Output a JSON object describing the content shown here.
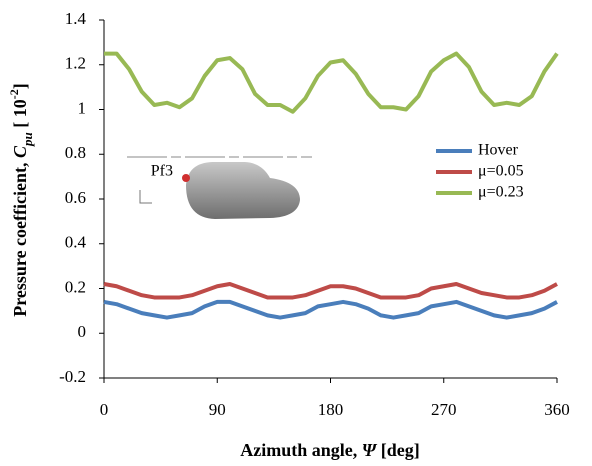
{
  "chart_data": {
    "type": "line",
    "xlabel": {
      "text": "Azimuth angle, ",
      "symbol": "Ψ",
      "unit": " [deg]"
    },
    "ylabel": {
      "text": "Pressure coefficient, ",
      "symbol": "C",
      "subscript": "pu",
      "unit": " [  10",
      "superscript": "-2",
      "close": "]"
    },
    "inset_label": "Pf3",
    "x": [
      0,
      10,
      20,
      30,
      40,
      50,
      60,
      70,
      80,
      90,
      100,
      110,
      120,
      130,
      140,
      150,
      160,
      170,
      180,
      190,
      200,
      210,
      220,
      230,
      240,
      250,
      260,
      270,
      280,
      290,
      300,
      310,
      320,
      330,
      340,
      350,
      360
    ],
    "series": [
      {
        "name": "Hover",
        "color": "#4a7ebb",
        "values": [
          0.14,
          0.13,
          0.11,
          0.09,
          0.08,
          0.07,
          0.08,
          0.09,
          0.12,
          0.14,
          0.14,
          0.12,
          0.1,
          0.08,
          0.07,
          0.08,
          0.09,
          0.12,
          0.13,
          0.14,
          0.13,
          0.11,
          0.08,
          0.07,
          0.08,
          0.09,
          0.12,
          0.13,
          0.14,
          0.12,
          0.1,
          0.08,
          0.07,
          0.08,
          0.09,
          0.11,
          0.14
        ]
      },
      {
        "name": "μ=0.05",
        "color": "#be4b48",
        "values": [
          0.22,
          0.21,
          0.19,
          0.17,
          0.16,
          0.16,
          0.16,
          0.17,
          0.19,
          0.21,
          0.22,
          0.2,
          0.18,
          0.16,
          0.16,
          0.16,
          0.17,
          0.19,
          0.21,
          0.21,
          0.2,
          0.18,
          0.16,
          0.16,
          0.16,
          0.17,
          0.2,
          0.21,
          0.22,
          0.2,
          0.18,
          0.17,
          0.16,
          0.16,
          0.17,
          0.19,
          0.22
        ]
      },
      {
        "name": "μ=0.23",
        "color": "#98b954",
        "values": [
          1.25,
          1.25,
          1.18,
          1.08,
          1.02,
          1.03,
          1.01,
          1.05,
          1.15,
          1.22,
          1.23,
          1.18,
          1.07,
          1.02,
          1.02,
          0.99,
          1.05,
          1.15,
          1.21,
          1.22,
          1.16,
          1.07,
          1.01,
          1.01,
          1.0,
          1.06,
          1.17,
          1.22,
          1.25,
          1.19,
          1.08,
          1.02,
          1.03,
          1.02,
          1.06,
          1.17,
          1.25
        ]
      }
    ],
    "xlim": [
      0,
      360
    ],
    "xticks": [
      0,
      90,
      180,
      270,
      360
    ],
    "ylim": [
      -0.2,
      1.4
    ],
    "yticks": [
      -0.2,
      0,
      0.2,
      0.4,
      0.6,
      0.8,
      1,
      1.2,
      1.4
    ],
    "grid": false,
    "legend_position": "right"
  }
}
